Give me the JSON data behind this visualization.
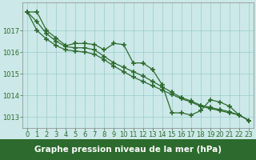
{
  "x": [
    0,
    1,
    2,
    3,
    4,
    5,
    6,
    7,
    8,
    9,
    10,
    11,
    12,
    13,
    14,
    15,
    16,
    17,
    18,
    19,
    20,
    21,
    22,
    23
  ],
  "line1": [
    1017.85,
    1017.85,
    1017.0,
    1016.65,
    1016.3,
    1016.4,
    1016.4,
    1016.35,
    1016.1,
    1016.4,
    1016.35,
    1015.5,
    1015.5,
    1015.2,
    1014.5,
    1013.2,
    1013.2,
    1013.1,
    1013.3,
    1013.8,
    1013.7,
    1013.5,
    1013.1,
    1012.85
  ],
  "line2": [
    1017.85,
    1017.4,
    1016.85,
    1016.5,
    1016.25,
    1016.2,
    1016.2,
    1016.1,
    1015.8,
    1015.5,
    1015.3,
    1015.1,
    1014.9,
    1014.65,
    1014.4,
    1014.15,
    1013.9,
    1013.75,
    1013.55,
    1013.45,
    1013.35,
    1013.25,
    1013.1,
    1012.85
  ],
  "line3": [
    1017.85,
    1017.0,
    1016.6,
    1016.3,
    1016.1,
    1016.05,
    1016.0,
    1015.9,
    1015.65,
    1015.35,
    1015.1,
    1014.85,
    1014.65,
    1014.45,
    1014.25,
    1014.05,
    1013.85,
    1013.7,
    1013.5,
    1013.4,
    1013.3,
    1013.2,
    1013.1,
    1012.85
  ],
  "ylim": [
    1012.5,
    1018.3
  ],
  "yticks": [
    1013,
    1014,
    1015,
    1016,
    1017
  ],
  "xticks": [
    0,
    1,
    2,
    3,
    4,
    5,
    6,
    7,
    8,
    9,
    10,
    11,
    12,
    13,
    14,
    15,
    16,
    17,
    18,
    19,
    20,
    21,
    22,
    23
  ],
  "line_color": "#2d6a2d",
  "bg_color": "#cce8e8",
  "grid_color": "#99cccc",
  "xlabel": "Graphe pression niveau de la mer (hPa)",
  "xlabel_bg": "#2d6a2d",
  "marker": "+",
  "markersize": 4,
  "markeredgewidth": 1.2,
  "linewidth": 0.9,
  "font_size_label": 7.5,
  "font_size_tick": 6.0
}
